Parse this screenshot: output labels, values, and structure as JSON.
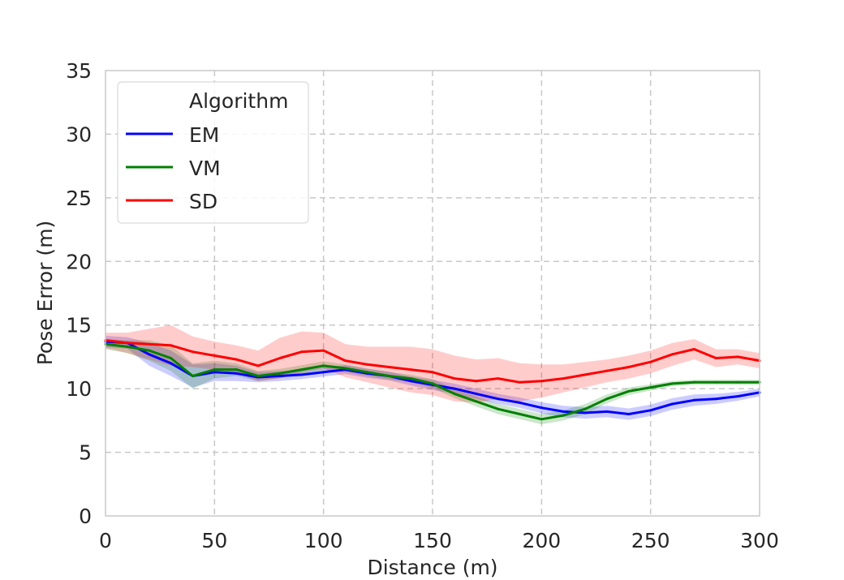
{
  "chart_data": {
    "type": "line",
    "title": "",
    "xlabel": "Distance (m)",
    "ylabel": "Pose Error (m)",
    "xlim": [
      0,
      300
    ],
    "ylim": [
      0,
      35
    ],
    "xticks": [
      0,
      50,
      100,
      150,
      200,
      250,
      300
    ],
    "yticks": [
      0,
      5,
      10,
      15,
      20,
      25,
      30,
      35
    ],
    "grid": true,
    "legend": {
      "title": "Algorithm",
      "position": "top-left"
    },
    "x": [
      0,
      10,
      20,
      30,
      40,
      50,
      60,
      70,
      80,
      90,
      100,
      110,
      120,
      130,
      140,
      150,
      160,
      170,
      180,
      190,
      200,
      210,
      220,
      230,
      240,
      250,
      260,
      270,
      280,
      290,
      300
    ],
    "series": [
      {
        "name": "EM",
        "color": "#0000ff",
        "values": [
          13.7,
          13.6,
          12.7,
          12.0,
          11.0,
          11.3,
          11.2,
          10.9,
          11.0,
          11.1,
          11.3,
          11.5,
          11.2,
          11.0,
          10.6,
          10.3,
          10.0,
          9.6,
          9.2,
          8.9,
          8.5,
          8.2,
          8.1,
          8.2,
          8.0,
          8.3,
          8.8,
          9.1,
          9.2,
          9.4,
          9.7
        ],
        "band": [
          0.45,
          0.45,
          0.9,
          1.0,
          0.9,
          0.7,
          0.6,
          0.4,
          0.4,
          0.35,
          0.35,
          0.35,
          0.35,
          0.35,
          0.35,
          0.4,
          0.4,
          0.4,
          0.4,
          0.4,
          0.45,
          0.45,
          0.45,
          0.45,
          0.45,
          0.45,
          0.45,
          0.45,
          0.4,
          0.35,
          0.3
        ]
      },
      {
        "name": "VM",
        "color": "#008000",
        "values": [
          13.5,
          13.3,
          13.0,
          12.4,
          11.0,
          11.5,
          11.5,
          11.0,
          11.2,
          11.5,
          11.8,
          11.6,
          11.3,
          11.0,
          10.8,
          10.4,
          9.6,
          9.0,
          8.4,
          8.0,
          7.6,
          7.9,
          8.4,
          9.2,
          9.8,
          10.1,
          10.4,
          10.5,
          10.5,
          10.5,
          10.5
        ],
        "band": [
          0.4,
          0.5,
          0.8,
          1.0,
          1.0,
          0.7,
          0.5,
          0.4,
          0.35,
          0.35,
          0.35,
          0.3,
          0.3,
          0.3,
          0.3,
          0.35,
          0.35,
          0.4,
          0.4,
          0.4,
          0.4,
          0.4,
          0.4,
          0.35,
          0.3,
          0.25,
          0.2,
          0.2,
          0.2,
          0.2,
          0.2
        ]
      },
      {
        "name": "SD",
        "color": "#ff0000",
        "values": [
          13.8,
          13.6,
          13.5,
          13.4,
          12.9,
          12.6,
          12.3,
          11.8,
          12.4,
          12.9,
          13.0,
          12.2,
          11.9,
          11.7,
          11.5,
          11.3,
          10.8,
          10.6,
          10.8,
          10.5,
          10.6,
          10.8,
          11.1,
          11.4,
          11.7,
          12.1,
          12.7,
          13.1,
          12.4,
          12.5,
          12.2
        ],
        "band": [
          0.6,
          0.8,
          1.2,
          1.6,
          1.2,
          1.1,
          1.1,
          1.2,
          1.6,
          1.6,
          1.4,
          1.3,
          1.4,
          1.6,
          1.8,
          1.8,
          1.8,
          1.7,
          1.6,
          1.5,
          1.3,
          1.1,
          1.0,
          0.9,
          0.9,
          0.9,
          0.9,
          0.8,
          0.7,
          0.6,
          0.6
        ]
      }
    ]
  }
}
